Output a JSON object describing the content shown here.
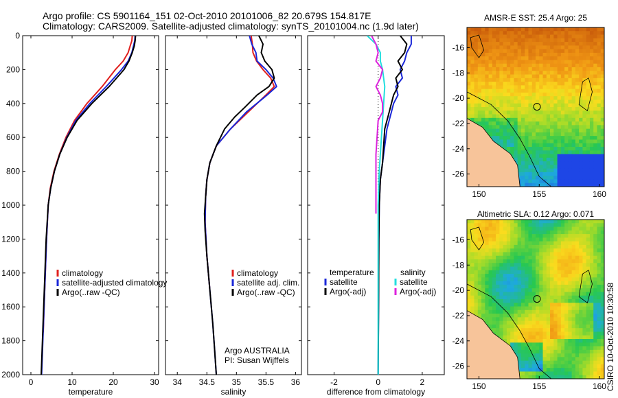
{
  "header": {
    "line1": "Argo profile: CS 5901164_151 02-Oct-2010 20101006_82 20.679S 154.817E",
    "line2": "Climatology: CARS2009. Satellite-adjusted climatology: synTS_20101004.nc (1.9d later)"
  },
  "colors": {
    "climatology": "#e0201e",
    "satellite": "#1a27d8",
    "argo": "#000000",
    "sat_salinity": "#22dede",
    "argo_salinity": "#dd22dd"
  },
  "chart_data": [
    {
      "type": "line",
      "panel": "temperature",
      "xlabel": "temperature",
      "xlim": [
        -2,
        31
      ],
      "ylim": [
        2000,
        0
      ],
      "xticks": [
        0,
        10,
        20,
        30
      ],
      "yticks": [
        0,
        200,
        400,
        600,
        800,
        1000,
        1200,
        1400,
        1600,
        1800,
        2000
      ],
      "y_inverted": true,
      "legend": [
        "climatology",
        "satellite-adjusted climatology",
        "Argo(..raw -QC)"
      ],
      "series": [
        {
          "name": "climatology",
          "color": "#e0201e",
          "x": [
            24.6,
            24.5,
            24.1,
            23.6,
            22.4,
            20.5,
            17.3,
            13.6,
            10.6,
            8.5,
            6.9,
            5.6,
            4.7,
            4.2,
            3.8,
            3.5,
            3.2,
            3.0
          ],
          "y": [
            0,
            30,
            60,
            100,
            150,
            200,
            300,
            400,
            500,
            600,
            700,
            800,
            900,
            1000,
            1200,
            1400,
            1600,
            1750
          ]
        },
        {
          "name": "satellite-adjusted climatology",
          "color": "#1a27d8",
          "x": [
            25.3,
            25.2,
            24.9,
            24.5,
            23.6,
            22.0,
            18.3,
            14.3,
            10.9,
            8.7,
            7.0,
            5.7,
            4.8,
            4.2,
            3.8,
            3.5,
            3.2,
            2.9,
            2.6
          ],
          "y": [
            0,
            30,
            60,
            100,
            150,
            200,
            300,
            400,
            500,
            600,
            700,
            800,
            900,
            1000,
            1200,
            1400,
            1600,
            1800,
            2000
          ]
        },
        {
          "name": "Argo(..raw -QC)",
          "color": "#000000",
          "x": [
            25.4,
            25.3,
            25.1,
            24.6,
            23.8,
            22.6,
            19.0,
            14.8,
            11.2,
            8.8,
            7.0,
            5.7,
            4.8,
            4.2,
            3.7,
            3.4,
            3.1,
            2.8,
            2.5
          ],
          "y": [
            0,
            30,
            60,
            100,
            150,
            200,
            300,
            400,
            500,
            600,
            700,
            800,
            900,
            1000,
            1200,
            1400,
            1600,
            1800,
            2000
          ]
        }
      ]
    },
    {
      "type": "line",
      "panel": "salinity",
      "xlabel": "salinity",
      "xlim": [
        33.8,
        36.1
      ],
      "ylim": [
        2000,
        0
      ],
      "xticks": [
        34,
        34.5,
        35,
        35.5,
        36
      ],
      "y_inverted": true,
      "legend": [
        "climatology",
        "satellite adj. clim.",
        "Argo(..raw -QC)"
      ],
      "annotation": [
        "Argo AUSTRALIA",
        "PI: Susan Wijffels"
      ],
      "series": [
        {
          "name": "climatology",
          "color": "#e0201e",
          "x": [
            35.25,
            35.27,
            35.28,
            35.34,
            35.45,
            35.58,
            35.64,
            35.5,
            35.2,
            34.9,
            34.66,
            34.55,
            34.5,
            34.48,
            34.47,
            34.5,
            34.55
          ],
          "y": [
            0,
            50,
            100,
            150,
            200,
            250,
            300,
            350,
            450,
            550,
            650,
            750,
            850,
            950,
            1100,
            1300,
            1500
          ]
        },
        {
          "name": "satellite adj. clim.",
          "color": "#1a27d8",
          "x": [
            35.22,
            35.26,
            35.33,
            35.35,
            35.5,
            35.62,
            35.68,
            35.52,
            35.17,
            34.9,
            34.66,
            34.55,
            34.5,
            34.48,
            34.47,
            34.5,
            34.55,
            34.6,
            34.63,
            34.66
          ],
          "y": [
            0,
            50,
            100,
            150,
            200,
            250,
            300,
            350,
            450,
            550,
            650,
            750,
            850,
            950,
            1100,
            1300,
            1500,
            1700,
            1850,
            2000
          ]
        },
        {
          "name": "Argo(..raw -QC)",
          "color": "#000000",
          "x": [
            35.38,
            35.45,
            35.42,
            35.48,
            35.6,
            35.64,
            35.55,
            35.35,
            35.15,
            34.97,
            34.8,
            34.66,
            34.55,
            34.5,
            34.48,
            34.46,
            34.47,
            34.5,
            34.55,
            34.6,
            34.63,
            34.66
          ],
          "y": [
            0,
            50,
            100,
            150,
            200,
            250,
            300,
            350,
            420,
            480,
            550,
            650,
            750,
            850,
            950,
            1050,
            1150,
            1300,
            1500,
            1700,
            1850,
            2000
          ]
        }
      ]
    },
    {
      "type": "line",
      "panel": "difference",
      "xlabel": "difference from climatology",
      "xlim": [
        -3.2,
        3
      ],
      "ylim": [
        2000,
        0
      ],
      "xticks": [
        -2,
        0,
        2
      ],
      "y_inverted": true,
      "legend_columns": [
        {
          "title": "temperature",
          "entries": [
            "satellite",
            "Argo(-adj)"
          ]
        },
        {
          "title": "salinity",
          "entries": [
            "satellite",
            "Argo(-adj)"
          ]
        }
      ],
      "series": [
        {
          "name": "temperature satellite",
          "color": "#1a27d8",
          "x": [
            1.5,
            1.5,
            1.3,
            1.2,
            1.0,
            1.1,
            0.8,
            0.9,
            0.7,
            0.6,
            0.4,
            0.3,
            0.2,
            0.1,
            0.05,
            0.03,
            0.02,
            0.01,
            0.0
          ],
          "y": [
            0,
            50,
            100,
            150,
            200,
            250,
            300,
            350,
            400,
            450,
            550,
            650,
            750,
            850,
            1000,
            1200,
            1500,
            1800,
            2000
          ]
        },
        {
          "name": "temperature Argo(-adj)",
          "color": "#000000",
          "x": [
            1.0,
            1.3,
            1.2,
            0.9,
            1.1,
            0.8,
            0.9,
            0.7,
            0.6,
            0.5,
            0.3,
            0.25,
            0.2,
            0.1,
            0.05,
            0.03,
            0.02,
            0.01,
            0.0
          ],
          "y": [
            0,
            50,
            100,
            150,
            200,
            250,
            300,
            350,
            400,
            450,
            550,
            650,
            750,
            850,
            1000,
            1200,
            1500,
            1800,
            2000
          ]
        },
        {
          "name": "salinity satellite",
          "color": "#22dede",
          "x": [
            -0.5,
            -0.1,
            0.1,
            0.1,
            0.2,
            0.3,
            0.25,
            0.2,
            0.15,
            0.1,
            0.05,
            0.02,
            0.0,
            0.0,
            0.0,
            0.0,
            0.0
          ],
          "y": [
            0,
            50,
            100,
            150,
            200,
            300,
            400,
            500,
            600,
            700,
            800,
            900,
            1000,
            1200,
            1500,
            1800,
            2000
          ]
        },
        {
          "name": "salinity Argo(-adj)",
          "color": "#dd22dd",
          "x": [
            -0.3,
            -0.1,
            0.0,
            -0.1,
            0.2,
            0.1,
            -0.1,
            0.1,
            0.2,
            0.2,
            0.0,
            -0.05,
            -0.1,
            -0.1,
            -0.1,
            -0.1
          ],
          "y": [
            0,
            50,
            100,
            150,
            200,
            250,
            300,
            350,
            400,
            450,
            500,
            600,
            700,
            800,
            900,
            1050
          ]
        }
      ]
    },
    {
      "type": "heatmap",
      "panel": "map-sst",
      "title": "AMSR-E SST: 25.4 Argo: 25",
      "xlim": [
        149,
        160.4
      ],
      "ylim": [
        -27,
        -14.4
      ],
      "xticks": [
        150,
        155,
        160
      ],
      "yticks": [
        -16,
        -18,
        -20,
        -22,
        -24,
        -26
      ],
      "argo_position": {
        "lon": 154.817,
        "lat": -20.679
      }
    },
    {
      "type": "heatmap",
      "panel": "map-sla",
      "title": "Altimetric SLA: 0.12 Argo: 0.071",
      "xlim": [
        149,
        160.4
      ],
      "ylim": [
        -27,
        -14.4
      ],
      "xticks": [
        150,
        155,
        160
      ],
      "yticks": [
        -16,
        -18,
        -20,
        -22,
        -24,
        -26
      ],
      "argo_position": {
        "lon": 154.817,
        "lat": -20.679
      }
    }
  ],
  "watermark": "CSIRO 10-Oct-2010 10:30:58"
}
